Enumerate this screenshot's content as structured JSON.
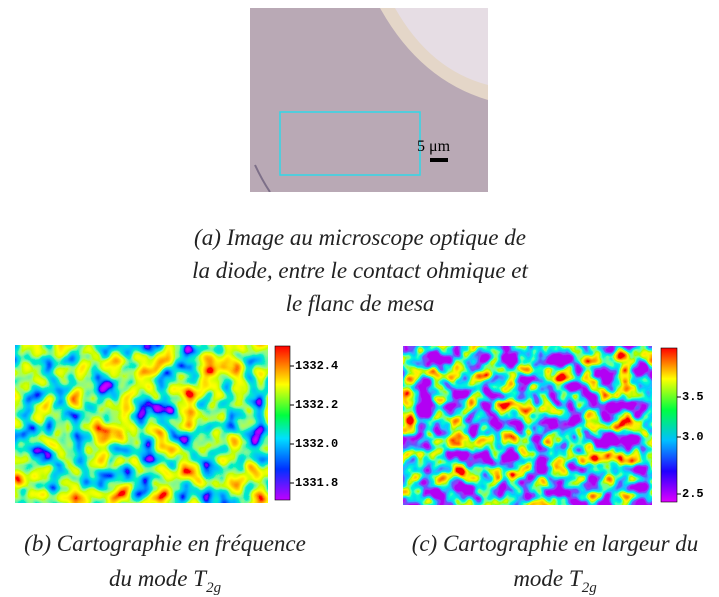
{
  "figure": {
    "micrograph": {
      "scale_label": "5 μm"
    },
    "caption_a": [
      "(a) Image au microscope optique de",
      "la diode, entre le contact ohmique et",
      "le flanc de mesa"
    ],
    "panel_b": {
      "ticks": [
        "1332.4",
        "1332.2",
        "1332.0",
        "1331.8"
      ],
      "caption": [
        "(b) Cartographie en fréquence",
        "du mode T"
      ],
      "subscript": "2g"
    },
    "panel_c": {
      "ticks": [
        "3.5",
        "3.0",
        "2.5"
      ],
      "caption": [
        "(c) Cartographie en largeur du",
        "mode T"
      ],
      "subscript": "2g"
    }
  }
}
